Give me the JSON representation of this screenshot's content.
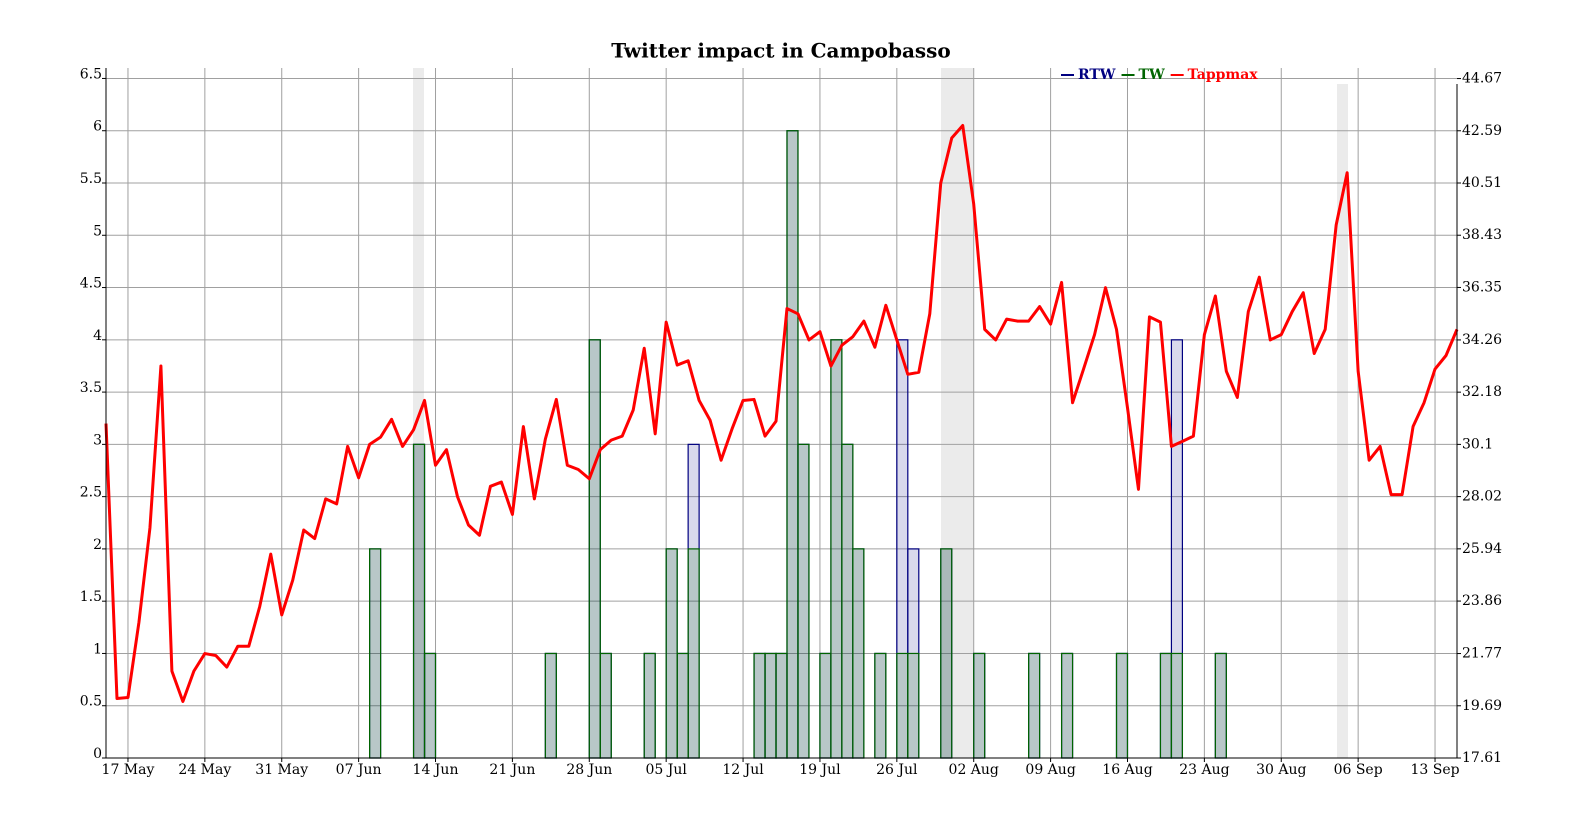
{
  "chart_data": {
    "type": "line",
    "title": "Twitter impact in Campobasso",
    "categories": [
      null,
      null,
      "17 May",
      null,
      null,
      null,
      null,
      null,
      null,
      "24 May",
      null,
      null,
      null,
      null,
      null,
      null,
      "31 May",
      null,
      null,
      null,
      null,
      null,
      null,
      "07 Jun",
      null,
      null,
      null,
      null,
      null,
      null,
      "14 Jun",
      null,
      null,
      null,
      null,
      null,
      null,
      "21 Jun",
      null,
      null,
      null,
      null,
      null,
      null,
      "28 Jun",
      null,
      null,
      null,
      null,
      null,
      null,
      "05 Jul",
      null,
      null,
      null,
      null,
      null,
      null,
      "12 Jul",
      null,
      null,
      null,
      null,
      null,
      null,
      "19 Jul",
      null,
      null,
      null,
      null,
      null,
      null,
      "26 Jul",
      null,
      null,
      null,
      null,
      null,
      null,
      "02 Aug",
      null,
      null,
      null,
      null,
      null,
      null,
      "09 Aug",
      null,
      null,
      null,
      null,
      null,
      null,
      "16 Aug",
      null,
      null,
      null,
      null,
      null,
      null,
      "23 Aug",
      null,
      null,
      null,
      null,
      null,
      null,
      "30 Aug",
      null,
      null,
      null,
      null,
      null,
      null,
      "06 Sep",
      null,
      null,
      null,
      null,
      null,
      null,
      "13 Sep",
      null,
      null
    ],
    "series": [
      {
        "name": "RTW",
        "color": "#000080",
        "type": "step",
        "values": [
          0,
          0,
          0,
          0,
          0,
          0,
          0,
          0,
          0,
          0,
          0,
          0,
          0,
          0,
          0,
          0,
          0,
          0,
          0,
          0,
          0,
          0,
          0,
          0,
          2,
          0,
          0,
          0,
          3,
          1,
          0,
          0,
          0,
          0,
          0,
          0,
          0,
          0,
          0,
          0,
          1,
          0,
          0,
          0,
          4,
          1,
          0,
          0,
          0,
          1,
          0,
          2,
          1,
          3,
          0,
          0,
          0,
          0,
          0,
          1,
          1,
          1,
          6,
          3,
          0,
          1,
          4,
          3,
          2,
          0,
          1,
          0,
          4,
          2,
          0,
          0,
          2,
          0,
          0,
          1,
          0,
          0,
          0,
          0,
          1,
          0,
          0,
          1,
          0,
          0,
          0,
          0,
          1,
          0,
          0,
          0,
          1,
          4,
          0,
          0,
          0,
          1,
          0,
          0,
          0,
          0,
          0,
          0,
          0,
          0,
          0,
          0,
          0,
          0,
          0,
          0,
          0,
          0,
          0,
          0,
          0,
          0,
          0,
          0
        ]
      },
      {
        "name": "TW",
        "color": "#006400",
        "type": "step",
        "values": [
          0,
          0,
          0,
          0,
          0,
          0,
          0,
          0,
          0,
          0,
          0,
          0,
          0,
          0,
          0,
          0,
          0,
          0,
          0,
          0,
          0,
          0,
          0,
          0,
          2,
          0,
          0,
          0,
          3,
          1,
          0,
          0,
          0,
          0,
          0,
          0,
          0,
          0,
          0,
          0,
          1,
          0,
          0,
          0,
          4,
          1,
          0,
          0,
          0,
          1,
          0,
          2,
          1,
          2,
          0,
          0,
          0,
          0,
          0,
          1,
          1,
          1,
          6,
          3,
          0,
          1,
          4,
          3,
          2,
          0,
          1,
          0,
          1,
          1,
          0,
          0,
          2,
          0,
          0,
          1,
          0,
          0,
          0,
          0,
          1,
          0,
          0,
          1,
          0,
          0,
          0,
          0,
          1,
          0,
          0,
          0,
          1,
          1,
          0,
          0,
          0,
          1,
          0,
          0,
          0,
          0,
          0,
          0,
          0,
          0,
          0,
          0,
          0,
          0,
          0,
          0,
          0,
          0,
          0,
          0,
          0,
          0,
          0,
          0
        ]
      },
      {
        "name": "Tappmax",
        "color": "#ff0000",
        "type": "line",
        "axis": "y2",
        "values": [
          30.93,
          19.98,
          20.02,
          23.02,
          26.77,
          33.22,
          21.07,
          19.86,
          21.07,
          21.77,
          21.69,
          21.23,
          22.06,
          22.06,
          23.65,
          25.73,
          23.31,
          24.69,
          26.69,
          26.35,
          27.93,
          27.73,
          30.02,
          28.77,
          30.1,
          30.39,
          31.1,
          30.02,
          30.68,
          31.85,
          29.27,
          29.89,
          28.02,
          26.89,
          26.48,
          28.43,
          28.6,
          27.31,
          30.81,
          27.93,
          30.31,
          31.89,
          29.27,
          29.1,
          28.73,
          29.89,
          30.27,
          30.43,
          31.47,
          33.93,
          30.52,
          34.97,
          33.26,
          33.43,
          31.85,
          31.06,
          29.47,
          30.72,
          31.85,
          31.89,
          30.43,
          31.02,
          35.51,
          35.3,
          34.26,
          34.59,
          33.22,
          34.05,
          34.39,
          35.01,
          33.97,
          35.64,
          34.26,
          32.89,
          32.97,
          35.3,
          40.51,
          42.3,
          42.8,
          39.67,
          34.68,
          34.26,
          35.09,
          35.01,
          35.01,
          35.59,
          34.89,
          36.55,
          31.76,
          33.1,
          34.47,
          36.34,
          34.68,
          31.56,
          28.31,
          35.18,
          34.97,
          30.02,
          30.22,
          30.43,
          34.47,
          36.01,
          33.01,
          31.97,
          35.39,
          36.76,
          34.26,
          34.47,
          35.39,
          36.14,
          33.72,
          34.68,
          38.84,
          40.92,
          33.01,
          29.47,
          30.02,
          28.1,
          28.1,
          30.81,
          31.76,
          33.1,
          33.64,
          34.68
        ]
      }
    ],
    "ylim": [
      0,
      6.6
    ],
    "yticks": [
      0,
      0.5,
      1,
      1.5,
      2,
      2.5,
      3,
      3.5,
      4,
      4.5,
      5,
      5.5,
      6,
      6.5
    ],
    "y2lim": [
      17.61,
      45.09
    ],
    "y2ticks": [
      17.61,
      19.69,
      21.77,
      23.86,
      25.94,
      28.02,
      30.1,
      32.18,
      34.26,
      36.35,
      38.43,
      40.51,
      42.59,
      44.67
    ],
    "grid": true
  }
}
